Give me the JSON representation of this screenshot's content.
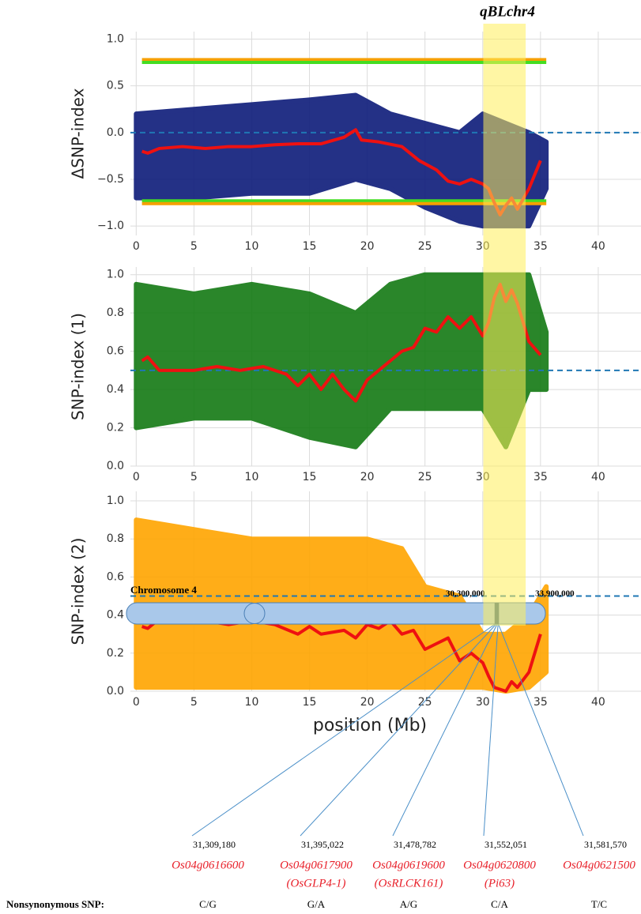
{
  "highlight_label": "qBLchr4",
  "chart_data": [
    {
      "type": "scatter",
      "ylabel": "ΔSNP-index",
      "xlim": [
        -0.5,
        43.7
      ],
      "ylim": [
        -1.1,
        1.08
      ],
      "xticks": [
        0,
        5,
        10,
        15,
        20,
        25,
        30,
        35,
        40
      ],
      "yticks": [
        {
          "value": -1.0,
          "label": "−1.0"
        },
        {
          "value": -0.5,
          "label": "−0.5"
        },
        {
          "value": 0.0,
          "label": "0.0"
        },
        0.5,
        {
          "value": 1.0,
          "label": "1.0"
        }
      ],
      "grid": true,
      "ref_line": 0.0,
      "ref_color": "#1f77b4",
      "cloud": {
        "color": "#0d1b7a",
        "x": [
          0,
          5,
          10,
          15,
          19,
          22,
          25,
          28,
          30,
          32,
          34,
          35.5
        ],
        "lower": [
          -0.7,
          -0.7,
          -0.65,
          -0.65,
          -0.5,
          -0.6,
          -0.8,
          -0.95,
          -1.0,
          -1.0,
          -1.0,
          -0.6
        ],
        "upper": [
          0.2,
          0.25,
          0.3,
          0.35,
          0.4,
          0.2,
          0.1,
          0.0,
          0.2,
          0.1,
          0.0,
          -0.1
        ]
      },
      "series": [
        {
          "color": "#f5a000",
          "x": [
            0.5,
            35.5
          ],
          "values": [
            0.78,
            0.78
          ]
        },
        {
          "color": "#44dd22",
          "x": [
            0.5,
            35.5
          ],
          "values": [
            0.75,
            0.75
          ]
        },
        {
          "color": "#44dd22",
          "x": [
            0.5,
            35.5
          ],
          "values": [
            -0.73,
            -0.73
          ]
        },
        {
          "color": "#f5a000",
          "x": [
            0.5,
            35.5
          ],
          "values": [
            -0.76,
            -0.76
          ]
        },
        {
          "color": "#ee1111",
          "x": [
            0.5,
            1,
            2,
            4,
            6,
            8,
            10,
            12,
            14,
            16,
            18,
            19,
            19.5,
            21,
            23,
            24.5,
            26,
            27,
            28,
            29,
            30,
            30.5,
            31,
            31.5,
            32,
            32.5,
            33,
            34,
            35
          ],
          "values": [
            -0.2,
            -0.22,
            -0.17,
            -0.15,
            -0.17,
            -0.15,
            -0.15,
            -0.13,
            -0.12,
            -0.12,
            -0.05,
            0.03,
            -0.08,
            -0.1,
            -0.15,
            -0.3,
            -0.4,
            -0.52,
            -0.55,
            -0.5,
            -0.55,
            -0.6,
            -0.75,
            -0.88,
            -0.78,
            -0.7,
            -0.82,
            -0.6,
            -0.3
          ]
        }
      ]
    },
    {
      "type": "scatter",
      "ylabel": "SNP-index (1)",
      "xlim": [
        -0.5,
        43.7
      ],
      "ylim": [
        0,
        1.04
      ],
      "xticks": [
        0,
        5,
        10,
        15,
        20,
        25,
        30,
        35,
        40
      ],
      "yticks": [
        {
          "value": 0.0,
          "label": "0.0"
        },
        0.2,
        0.4,
        0.6,
        0.8,
        {
          "value": 1.0,
          "label": "1.0"
        }
      ],
      "grid": true,
      "ref_line": 0.5,
      "ref_color": "#1f77b4",
      "cloud": {
        "color": "#137a13",
        "x": [
          0,
          5,
          10,
          15,
          19,
          22,
          25,
          28,
          30,
          32,
          34,
          35.5
        ],
        "lower": [
          0.2,
          0.25,
          0.25,
          0.15,
          0.1,
          0.3,
          0.3,
          0.3,
          0.3,
          0.1,
          0.4,
          0.4
        ],
        "upper": [
          0.95,
          0.9,
          0.95,
          0.9,
          0.8,
          0.95,
          1.0,
          1.0,
          1.0,
          1.0,
          1.0,
          0.7
        ]
      },
      "series": [
        {
          "color": "#ee1111",
          "x": [
            0.5,
            1,
            2,
            3,
            5,
            7,
            9,
            11,
            13,
            14,
            15,
            16,
            17,
            18,
            19,
            20,
            21,
            22,
            23,
            24,
            25,
            26,
            27,
            28,
            29,
            30,
            30.5,
            31,
            31.5,
            32,
            32.5,
            33,
            34,
            35
          ],
          "values": [
            0.55,
            0.57,
            0.5,
            0.5,
            0.5,
            0.52,
            0.5,
            0.52,
            0.48,
            0.42,
            0.48,
            0.4,
            0.48,
            0.4,
            0.34,
            0.45,
            0.5,
            0.55,
            0.6,
            0.62,
            0.72,
            0.7,
            0.78,
            0.72,
            0.78,
            0.68,
            0.75,
            0.88,
            0.95,
            0.86,
            0.92,
            0.85,
            0.65,
            0.58
          ]
        }
      ]
    },
    {
      "type": "scatter",
      "ylabel": "SNP-index (2)",
      "xlabel": "position (Mb)",
      "xlim": [
        -0.5,
        43.7
      ],
      "ylim": [
        0,
        1.05
      ],
      "xticks": [
        0,
        5,
        10,
        15,
        20,
        25,
        30,
        35,
        40
      ],
      "yticks": [
        {
          "value": 0.0,
          "label": "0.0"
        },
        0.2,
        0.4,
        0.6,
        0.8,
        {
          "value": 1.0,
          "label": "1.0"
        }
      ],
      "grid": true,
      "ref_line": 0.5,
      "ref_color": "#1f77b4",
      "cloud": {
        "color": "#ffa500",
        "x": [
          0,
          5,
          10,
          15,
          20,
          23,
          25,
          28,
          30,
          32,
          34,
          35.5
        ],
        "lower": [
          0.02,
          0.02,
          0.02,
          0.02,
          0.02,
          0.02,
          0.02,
          0.02,
          0.02,
          0.0,
          0.02,
          0.1
        ],
        "upper": [
          0.9,
          0.85,
          0.8,
          0.8,
          0.8,
          0.75,
          0.55,
          0.5,
          0.3,
          0.3,
          0.4,
          0.55
        ]
      },
      "series": [
        {
          "color": "#ee1111",
          "x": [
            0.5,
            1,
            2,
            3,
            5,
            6,
            8,
            10,
            12,
            14,
            15,
            16,
            18,
            19,
            20,
            21,
            22,
            23,
            24,
            25,
            26,
            27,
            28,
            29,
            30,
            30.5,
            31,
            32,
            32.5,
            33,
            34,
            35
          ],
          "values": [
            0.34,
            0.33,
            0.38,
            0.36,
            0.4,
            0.37,
            0.35,
            0.37,
            0.35,
            0.3,
            0.34,
            0.3,
            0.32,
            0.28,
            0.35,
            0.33,
            0.37,
            0.3,
            0.32,
            0.22,
            0.25,
            0.28,
            0.16,
            0.2,
            0.15,
            0.08,
            0.02,
            0.0,
            0.05,
            0.02,
            0.1,
            0.3
          ]
        }
      ]
    }
  ],
  "chromosome": {
    "name": "Chromosome 4",
    "region_start": {
      "value": 30300000,
      "label": "30,300,000"
    },
    "region_end": {
      "value": 33900000,
      "label": "33,900,000"
    },
    "snp_heading": "Nonsynonymous SNP:",
    "genes": [
      {
        "position": {
          "value": 31309180,
          "label": "31,309,180"
        },
        "name": "Os04g0616600",
        "snp": "C/G"
      },
      {
        "position": {
          "value": 31395022,
          "label": "31,395,022"
        },
        "name": "Os04g0617900",
        "alias": "(OsGLP4-1)",
        "snp": "G/A"
      },
      {
        "position": {
          "value": 31478782,
          "label": "31,478,782"
        },
        "name": "Os04g0619600",
        "alias": "(OsRLCK161)",
        "snp": "A/G"
      },
      {
        "position": {
          "value": 31552051,
          "label": "31,552,051"
        },
        "name": "Os04g0620800",
        "alias": "(Pi63)",
        "snp": "C/A"
      },
      {
        "position": {
          "value": 31581570,
          "label": "31,581,570"
        },
        "name": "Os04g0621500",
        "snp": "T/C"
      }
    ]
  }
}
